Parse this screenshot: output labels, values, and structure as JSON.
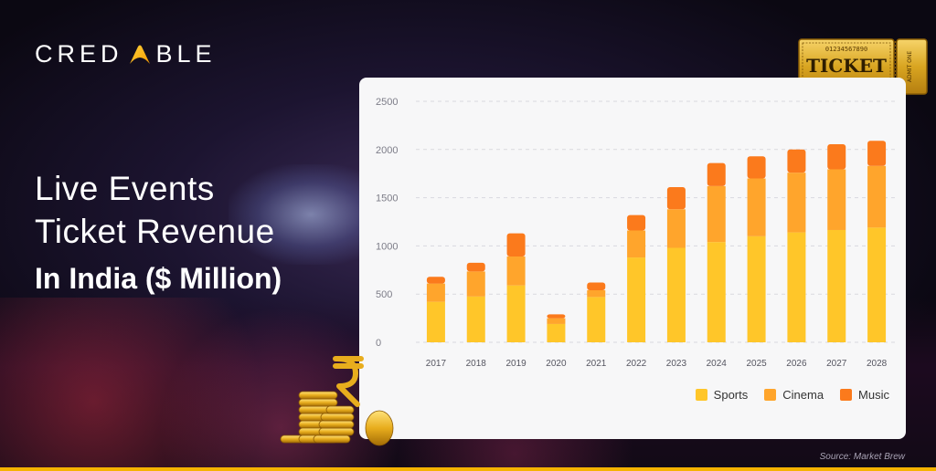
{
  "brand": {
    "prefix": "CRED",
    "suffix": "BLE"
  },
  "headline": {
    "line1": "Live Events",
    "line2": "Ticket Revenue",
    "line3": "In India ($ Million)"
  },
  "ticket": {
    "word": "TICKET",
    "serial": "01234567890",
    "side": "ADMIT ONE"
  },
  "source": "Source: Market Brew",
  "colors": {
    "sports": "#ffc629",
    "cinema": "#ffa52c",
    "music": "#fb7a1c",
    "accent": "#f5b300"
  },
  "chart_data": {
    "type": "bar",
    "stacked": true,
    "categories": [
      "2017",
      "2018",
      "2019",
      "2020",
      "2021",
      "2022",
      "2023",
      "2024",
      "2025",
      "2026",
      "2027",
      "2028"
    ],
    "series": [
      {
        "name": "Sports",
        "values": [
          420,
          475,
          590,
          190,
          470,
          880,
          980,
          1040,
          1100,
          1140,
          1165,
          1190
        ]
      },
      {
        "name": "Cinema",
        "values": [
          190,
          260,
          300,
          60,
          70,
          280,
          400,
          580,
          600,
          620,
          630,
          640
        ]
      },
      {
        "name": "Music",
        "values": [
          70,
          90,
          240,
          40,
          80,
          160,
          230,
          240,
          230,
          240,
          260,
          260
        ]
      }
    ],
    "yticks": [
      "0",
      "500",
      "1000",
      "1500",
      "2000",
      "2500"
    ],
    "ylim": [
      0,
      2500
    ],
    "grid": true,
    "legend_position": "bottom-right"
  }
}
